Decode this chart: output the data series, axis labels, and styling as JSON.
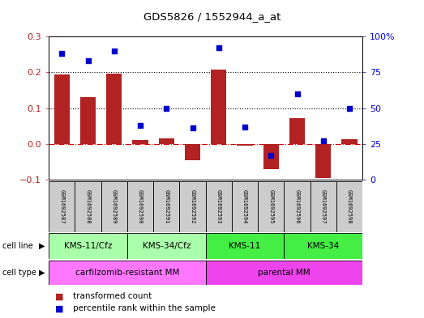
{
  "title": "GDS5826 / 1552944_a_at",
  "samples": [
    "GSM1692587",
    "GSM1692588",
    "GSM1692589",
    "GSM1692590",
    "GSM1692591",
    "GSM1692592",
    "GSM1692593",
    "GSM1692594",
    "GSM1692595",
    "GSM1692596",
    "GSM1692597",
    "GSM1692598"
  ],
  "bar_values": [
    0.195,
    0.13,
    0.197,
    0.01,
    0.015,
    -0.045,
    0.207,
    -0.005,
    -0.07,
    0.072,
    -0.095,
    0.013
  ],
  "dot_values": [
    88,
    83,
    90,
    38,
    50,
    36,
    92,
    37,
    17,
    60,
    27,
    50
  ],
  "bar_color": "#B22222",
  "dot_color": "#0000CC",
  "ylim_left": [
    -0.1,
    0.3
  ],
  "ylim_right": [
    0,
    100
  ],
  "yticks_left": [
    -0.1,
    0.0,
    0.1,
    0.2,
    0.3
  ],
  "yticks_right": [
    0,
    25,
    50,
    75,
    100
  ],
  "ytick_labels_right": [
    "0",
    "25",
    "50",
    "75",
    "100%"
  ],
  "hlines": [
    0.1,
    0.2
  ],
  "cell_lines": [
    {
      "label": "KMS-11/Cfz",
      "start": 0,
      "end": 3,
      "color": "#AAFFAA"
    },
    {
      "label": "KMS-34/Cfz",
      "start": 3,
      "end": 6,
      "color": "#AAFFAA"
    },
    {
      "label": "KMS-11",
      "start": 6,
      "end": 9,
      "color": "#44EE44"
    },
    {
      "label": "KMS-34",
      "start": 9,
      "end": 12,
      "color": "#44EE44"
    }
  ],
  "cell_types": [
    {
      "label": "carfilzomib-resistant MM",
      "start": 0,
      "end": 6,
      "color": "#FF77FF"
    },
    {
      "label": "parental MM",
      "start": 6,
      "end": 12,
      "color": "#EE44EE"
    }
  ],
  "legend_bar_label": "transformed count",
  "legend_dot_label": "percentile rank within the sample",
  "bg_color": "#FFFFFF",
  "plot_bg": "#FFFFFF",
  "zero_line_color": "#CC0000",
  "sample_box_color": "#CCCCCC"
}
